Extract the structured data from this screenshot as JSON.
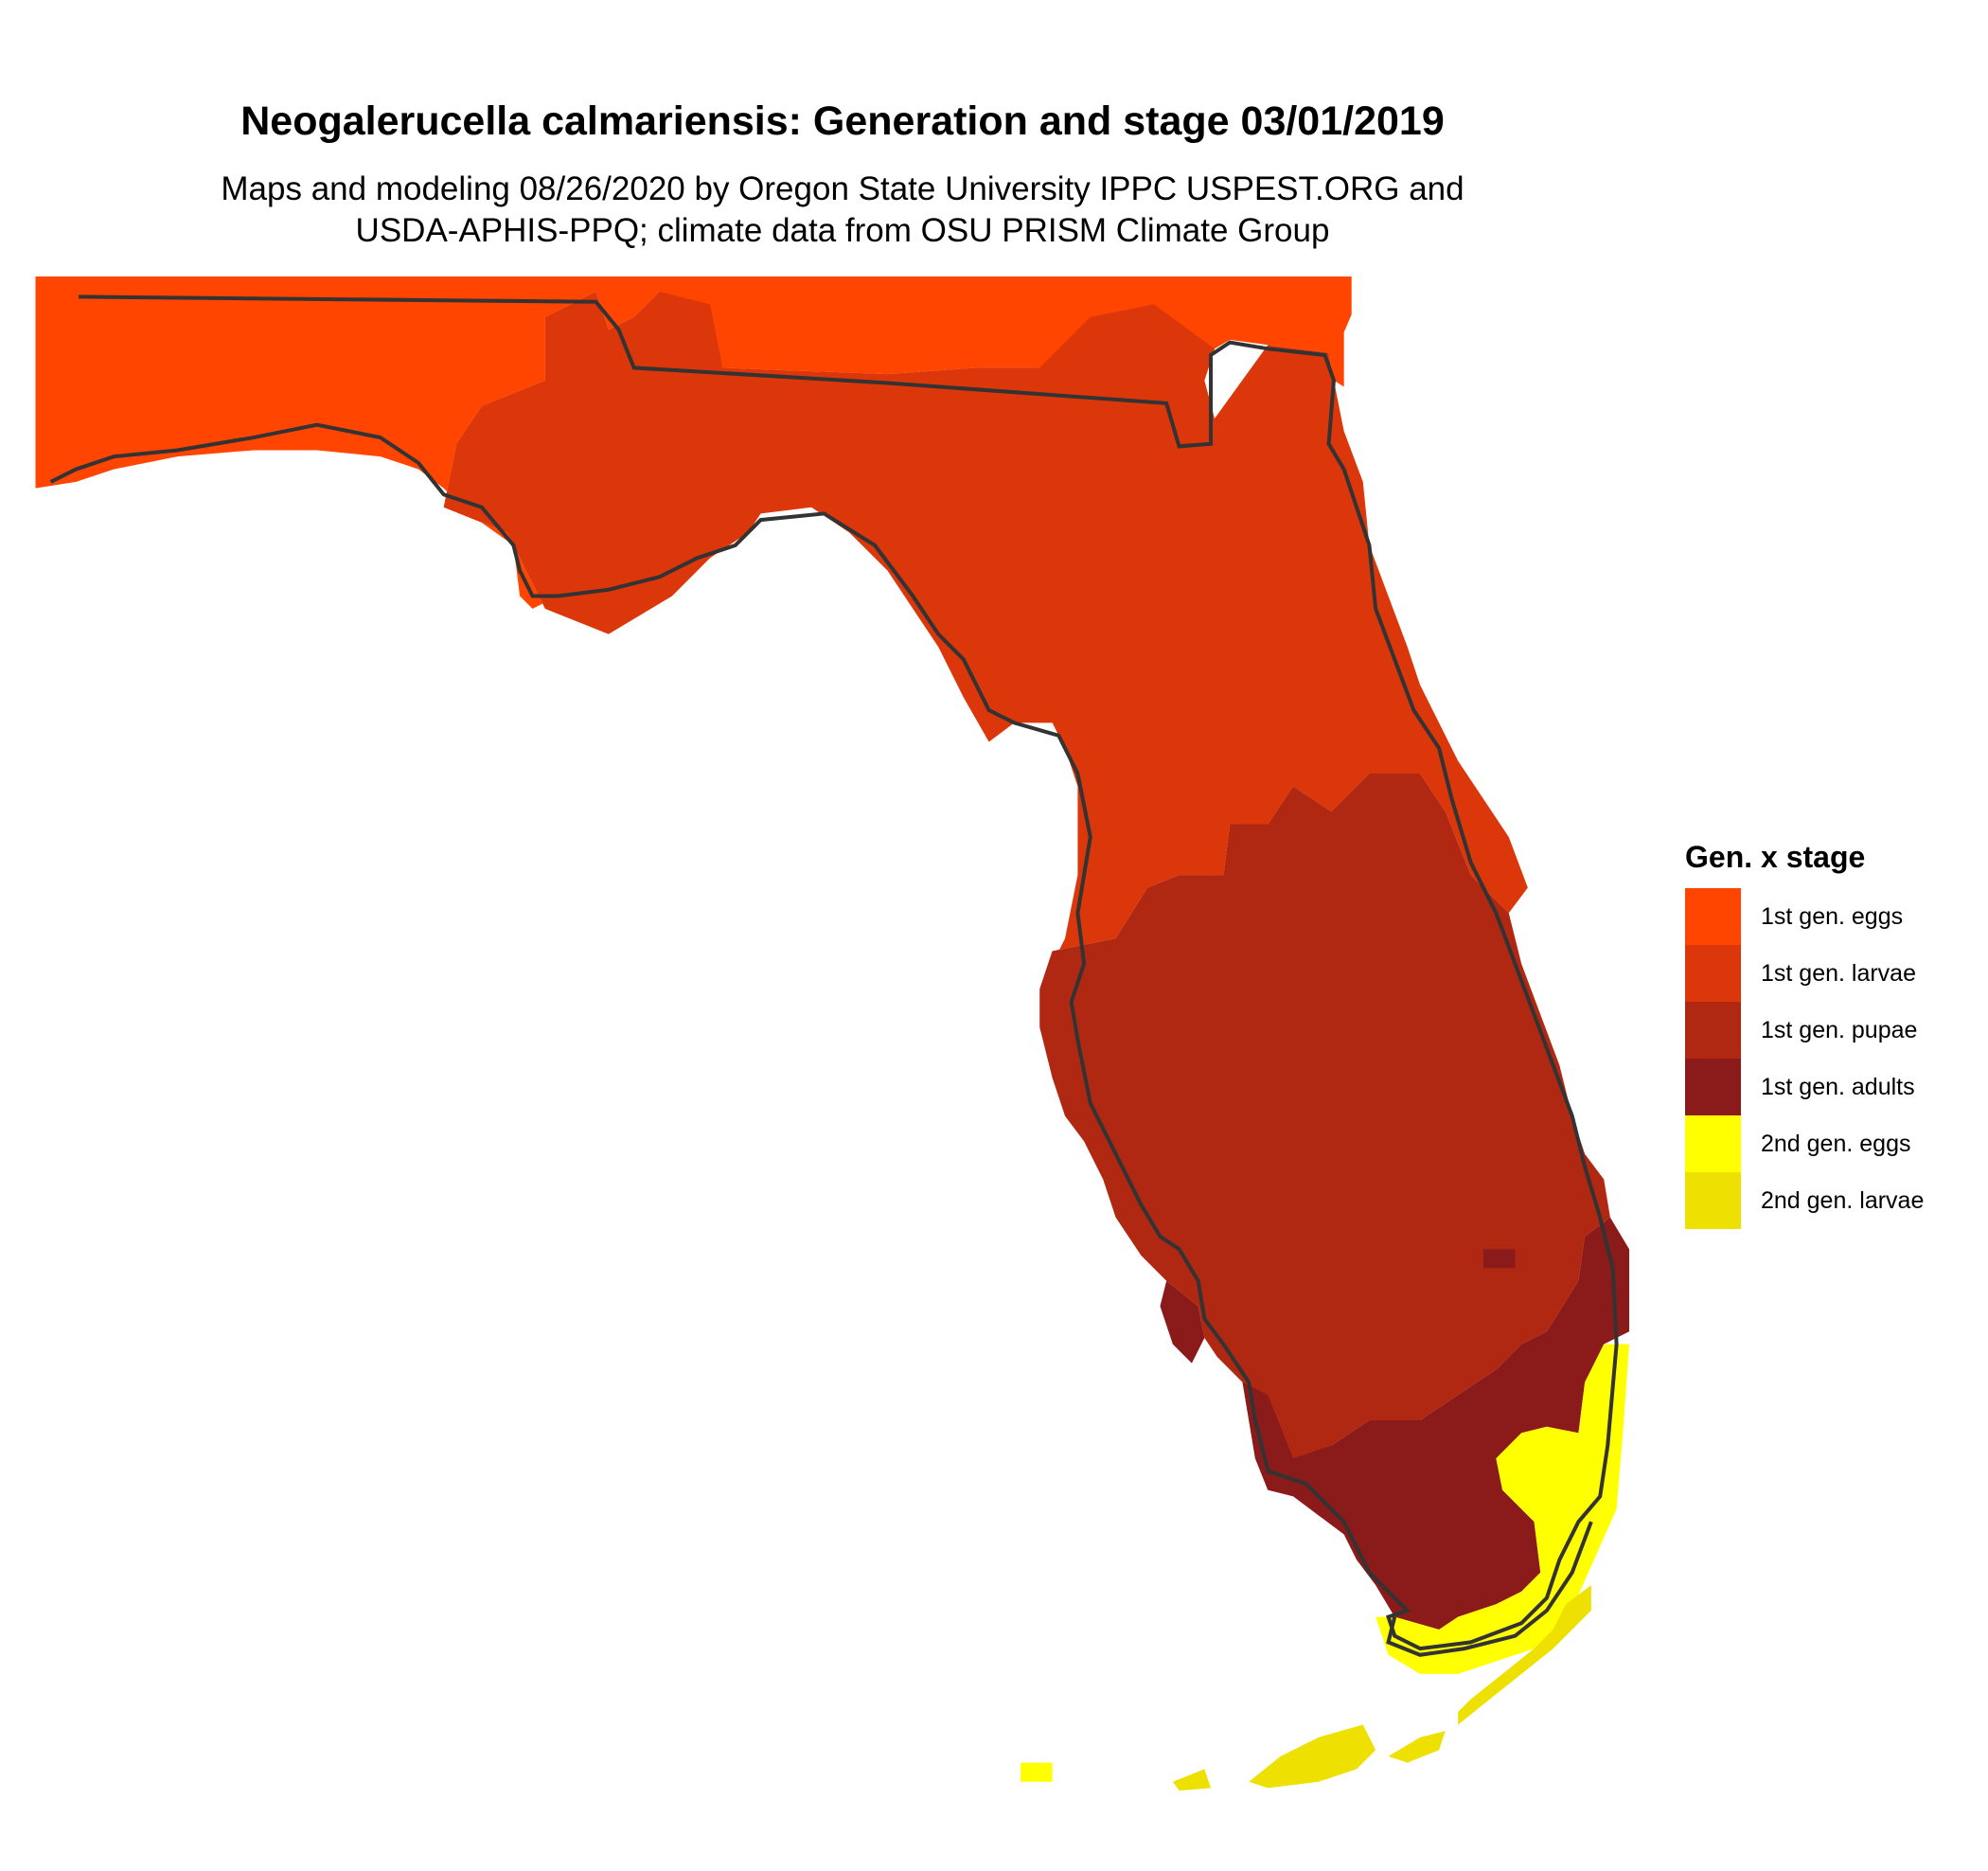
{
  "title": "Neogalerucella calmariensis: Generation and stage 03/01/2019",
  "subtitle": {
    "line1": "Maps and modeling 08/26/2020 by Oregon State University IPPC USPEST.ORG and",
    "line2": "USDA-APHIS-PPQ; climate data from OSU PRISM Climate Group"
  },
  "legend": {
    "title": "Gen. x stage",
    "items": [
      {
        "label": "1st gen. eggs",
        "color": "#ff4500"
      },
      {
        "label": "1st gen. larvae",
        "color": "#dc360b"
      },
      {
        "label": "1st gen. pupae",
        "color": "#b12812"
      },
      {
        "label": "1st gen. adults",
        "color": "#8b1a1a"
      },
      {
        "label": "2nd gen. eggs",
        "color": "#ffff00"
      },
      {
        "label": "2nd gen. larvae",
        "color": "#eee000"
      }
    ]
  },
  "map": {
    "region": "Florida",
    "border_color": "#333333"
  }
}
